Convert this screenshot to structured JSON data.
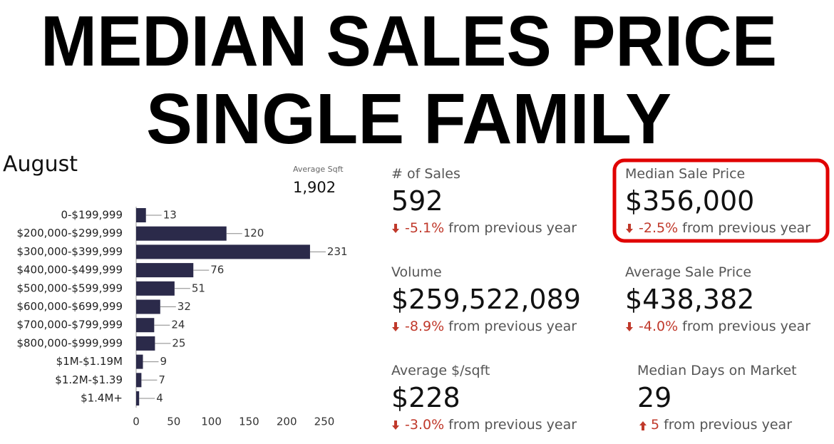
{
  "headline": {
    "line1": "MEDIAN SALES PRICE",
    "line2": "SINGLE FAMILY"
  },
  "period": "August",
  "sqft": {
    "label": "Average Sqft",
    "value": "1,902"
  },
  "chart_data": {
    "type": "hbar",
    "categories": [
      "0-$199,999",
      "$200,000-$299,999",
      "$300,000-$399,999",
      "$400,000-$499,999",
      "$500,000-$599,999",
      "$600,000-$699,999",
      "$700,000-$799,999",
      "$800,000-$999,999",
      "$1M-$1.19M",
      "$1.2M-$1.39",
      "$1.4M+"
    ],
    "values": [
      13,
      120,
      231,
      76,
      51,
      32,
      24,
      25,
      9,
      7,
      4
    ],
    "color": "#2b2a4a",
    "xlim": [
      0,
      250
    ],
    "xticks": [
      0,
      50,
      100,
      150,
      200,
      250
    ]
  },
  "stats": [
    {
      "label": "# of Sales",
      "value": "592",
      "change": "-5.1%",
      "suffix": "from previous year"
    },
    {
      "label": "Median Sale Price",
      "value": "$356,000",
      "change": "-2.5%",
      "suffix": "from previous year"
    },
    {
      "label": "Volume",
      "value": "$259,522,089",
      "change": "-8.9%",
      "suffix": "from previous year"
    },
    {
      "label": "Average Sale Price",
      "value": "$438,382",
      "change": "-4.0%",
      "suffix": "from previous year"
    },
    {
      "label": "Average $/sqft",
      "value": "$228",
      "change": "-3.0%",
      "suffix": "from previous year"
    },
    {
      "label": "Median Days on Market",
      "value": "29",
      "change": "5",
      "suffix": "from previous year"
    }
  ]
}
